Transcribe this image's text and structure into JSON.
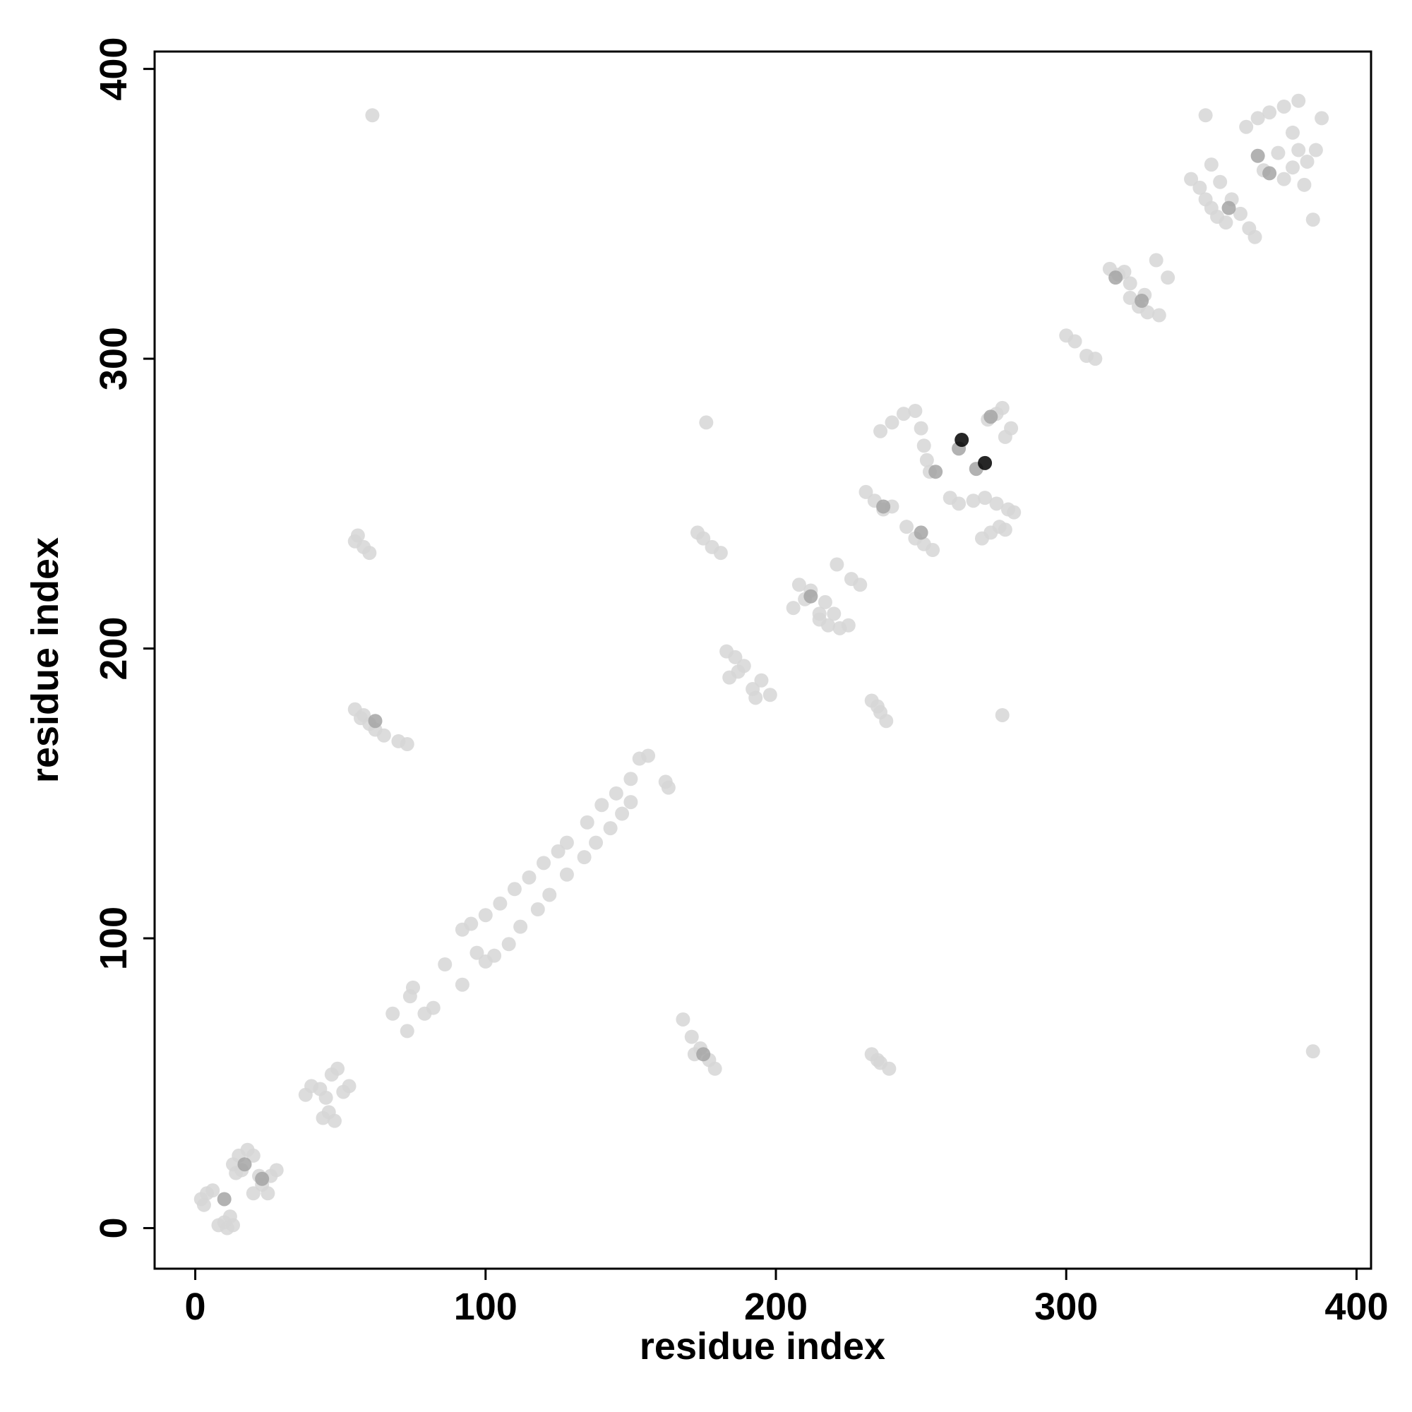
{
  "chart_data": {
    "type": "scatter",
    "xlabel": "residue index",
    "ylabel": "residue index",
    "xlim": [
      -14,
      405
    ],
    "ylim": [
      -14,
      406
    ],
    "xticks": [
      0,
      100,
      200,
      300,
      400
    ],
    "yticks": [
      0,
      100,
      200,
      300,
      400
    ],
    "grid": false,
    "series": [
      {
        "color": "#d6d6d6",
        "x": [
          2,
          4,
          3,
          6,
          8,
          10,
          12,
          13,
          11,
          13,
          15,
          18,
          14,
          20,
          16,
          20,
          23,
          26,
          28,
          25,
          22,
          38,
          40,
          43,
          45,
          44,
          46,
          48,
          49,
          47,
          53,
          51,
          68,
          74,
          75,
          73,
          79,
          82,
          86,
          92,
          92,
          95,
          100,
          105,
          110,
          115,
          120,
          125,
          128,
          135,
          140,
          145,
          150,
          153,
          156,
          97,
          100,
          103,
          108,
          112,
          118,
          122,
          128,
          134,
          138,
          143,
          147,
          150,
          162,
          163,
          55,
          58,
          60,
          56,
          55,
          58,
          60,
          62,
          65,
          70,
          73,
          57,
          176,
          175,
          178,
          181,
          173,
          183,
          186,
          189,
          184,
          187,
          192,
          195,
          198,
          193,
          208,
          212,
          206,
          210,
          215,
          215,
          218,
          222,
          220,
          217,
          225,
          221,
          226,
          229,
          233,
          236,
          238,
          235,
          168,
          171,
          174,
          177,
          179,
          172,
          233,
          236,
          239,
          235,
          278,
          385,
          61,
          236,
          240,
          244,
          248,
          250,
          251,
          252,
          253,
          231,
          234,
          237,
          240,
          245,
          248,
          251,
          254,
          260,
          263,
          268,
          272,
          276,
          280,
          282,
          271,
          274,
          277,
          279,
          273,
          276,
          278,
          281,
          279,
          300,
          303,
          307,
          310,
          315,
          318,
          322,
          320,
          322,
          325,
          328,
          332,
          327,
          331,
          335,
          343,
          346,
          348,
          350,
          352,
          355,
          350,
          348,
          353,
          357,
          360,
          363,
          365,
          362,
          366,
          370,
          375,
          380,
          378,
          373,
          380,
          383,
          386,
          388,
          385,
          382,
          378,
          368,
          375
        ],
        "values": [
          10,
          12,
          8,
          13,
          1,
          2,
          4,
          1,
          0,
          22,
          25,
          27,
          19,
          25,
          20,
          12,
          15,
          18,
          20,
          12,
          18,
          46,
          49,
          48,
          45,
          38,
          40,
          37,
          55,
          53,
          49,
          47,
          74,
          80,
          83,
          68,
          74,
          76,
          91,
          84,
          103,
          105,
          108,
          112,
          117,
          121,
          126,
          130,
          133,
          140,
          146,
          150,
          155,
          162,
          163,
          95,
          92,
          94,
          98,
          104,
          110,
          115,
          122,
          128,
          133,
          138,
          143,
          147,
          154,
          152,
          237,
          235,
          233,
          239,
          179,
          177,
          174,
          172,
          170,
          168,
          167,
          176,
          278,
          238,
          235,
          233,
          240,
          199,
          197,
          194,
          190,
          192,
          186,
          189,
          184,
          183,
          222,
          220,
          214,
          217,
          212,
          210,
          208,
          207,
          212,
          216,
          208,
          229,
          224,
          222,
          182,
          178,
          175,
          180,
          72,
          66,
          62,
          58,
          55,
          60,
          60,
          57,
          55,
          58,
          177,
          61,
          384,
          275,
          278,
          281,
          282,
          276,
          270,
          265,
          261,
          254,
          251,
          248,
          249,
          242,
          238,
          236,
          234,
          252,
          250,
          251,
          252,
          250,
          248,
          247,
          238,
          240,
          242,
          241,
          279,
          281,
          283,
          276,
          273,
          308,
          306,
          301,
          300,
          331,
          329,
          326,
          330,
          321,
          318,
          316,
          315,
          322,
          334,
          328,
          362,
          359,
          355,
          352,
          349,
          347,
          367,
          384,
          361,
          355,
          350,
          345,
          342,
          380,
          383,
          385,
          387,
          389,
          378,
          371,
          372,
          368,
          372,
          383,
          348,
          360,
          366,
          365,
          362
        ]
      },
      {
        "color": "#a4a4a4",
        "x": [
          10,
          17,
          23,
          255,
          263,
          269,
          274,
          317,
          326,
          366,
          370,
          356,
          175,
          62,
          212,
          237,
          250
        ],
        "values": [
          10,
          22,
          17,
          261,
          269,
          262,
          280,
          328,
          320,
          370,
          364,
          352,
          60,
          175,
          218,
          249,
          240
        ]
      },
      {
        "color": "#000000",
        "x": [
          264,
          272
        ],
        "values": [
          272,
          264
        ]
      }
    ]
  }
}
